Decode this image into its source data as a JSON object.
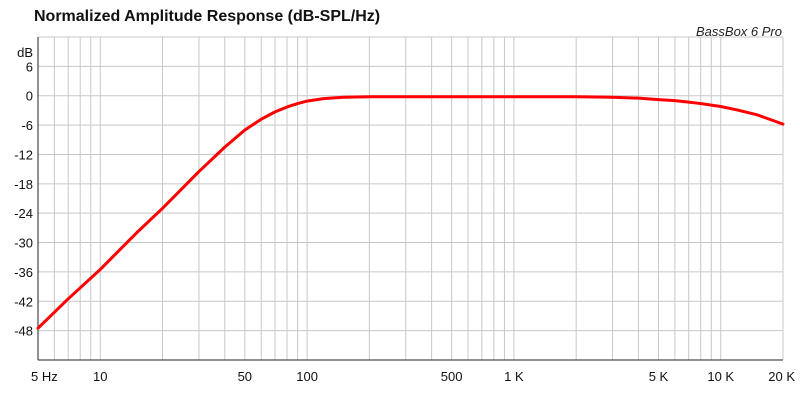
{
  "chart_data": {
    "type": "line",
    "title": "Normalized Amplitude Response (dB-SPL/Hz)",
    "annotation": "BassBox 6 Pro",
    "ylabel": "dB",
    "xlabel": "",
    "xscale": "log",
    "xlim": [
      5,
      20000
    ],
    "ylim": [
      -54,
      12
    ],
    "grid": true,
    "x_ticks": [
      {
        "value": 5,
        "label": "5 Hz"
      },
      {
        "value": 10,
        "label": "10"
      },
      {
        "value": 50,
        "label": "50"
      },
      {
        "value": 100,
        "label": "100"
      },
      {
        "value": 500,
        "label": "500"
      },
      {
        "value": 1000,
        "label": "1 K"
      },
      {
        "value": 5000,
        "label": "5 K"
      },
      {
        "value": 10000,
        "label": "10 K"
      },
      {
        "value": 20000,
        "label": "20 K"
      }
    ],
    "y_ticks": [
      {
        "value": 6,
        "label": "6"
      },
      {
        "value": 0,
        "label": "0"
      },
      {
        "value": -6,
        "label": "-6"
      },
      {
        "value": -12,
        "label": "-12"
      },
      {
        "value": -18,
        "label": "-18"
      },
      {
        "value": -24,
        "label": "-24"
      },
      {
        "value": -30,
        "label": "-30"
      },
      {
        "value": -36,
        "label": "-36"
      },
      {
        "value": -42,
        "label": "-42"
      },
      {
        "value": -48,
        "label": "-48"
      }
    ],
    "series": [
      {
        "color": "#ff0000",
        "x": [
          5,
          7,
          10,
          15,
          20,
          30,
          40,
          50,
          60,
          70,
          80,
          90,
          100,
          120,
          150,
          200,
          300,
          500,
          1000,
          2000,
          3000,
          4000,
          5000,
          6000,
          7000,
          8000,
          10000,
          12000,
          15000,
          20000
        ],
        "y": [
          -47.5,
          -41.5,
          -35.5,
          -28,
          -23,
          -15.5,
          -10.5,
          -7,
          -4.8,
          -3.3,
          -2.3,
          -1.6,
          -1.1,
          -0.6,
          -0.3,
          -0.2,
          -0.2,
          -0.2,
          -0.2,
          -0.2,
          -0.3,
          -0.5,
          -0.8,
          -1.0,
          -1.3,
          -1.6,
          -2.2,
          -2.9,
          -3.9,
          -5.8
        ]
      }
    ]
  }
}
